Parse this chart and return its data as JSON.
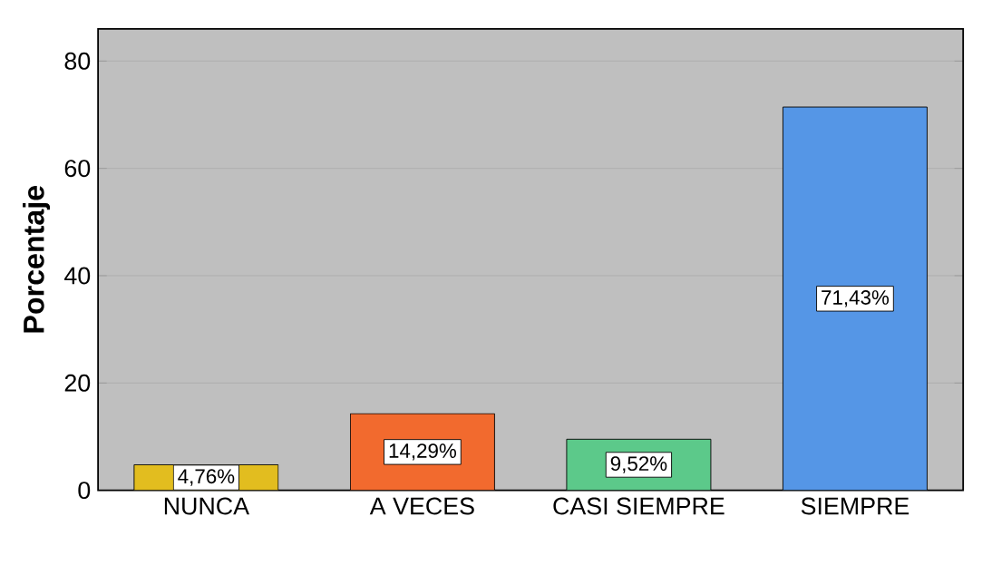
{
  "chart_data": {
    "type": "bar",
    "ylabel": "Porcentaje",
    "categories": [
      "NUNCA",
      "A VECES",
      "CASI SIEMPRE",
      "SIEMPRE"
    ],
    "values": [
      4.76,
      14.29,
      9.52,
      71.43
    ],
    "colors": [
      "#e2bd1f",
      "#f26a2e",
      "#5cc98a",
      "#5596e6"
    ],
    "value_labels": [
      "4,76%",
      "14,29%",
      "9,52%",
      "71,43%"
    ],
    "ylim": [
      0,
      86
    ],
    "yticks": [
      0,
      20,
      40,
      60,
      80
    ],
    "grid": "y"
  }
}
